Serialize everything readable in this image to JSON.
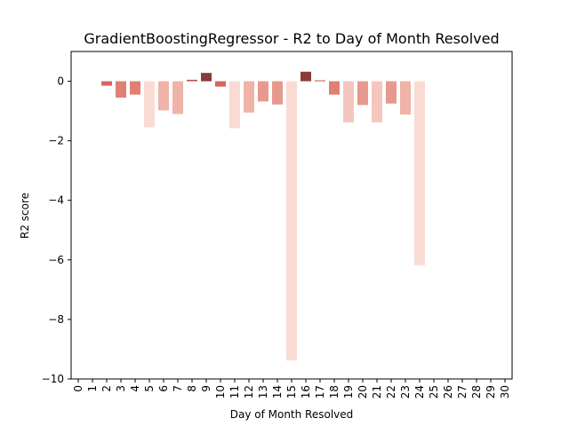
{
  "chart_data": {
    "type": "bar",
    "title": "GradientBoostingRegressor - R2 to Day of Month Resolved",
    "xlabel": "Day of Month Resolved",
    "ylabel": "R2 score",
    "ylim": [
      -10,
      1
    ],
    "yticks": [
      0,
      -2,
      -4,
      -6,
      -8,
      -10
    ],
    "grid": false,
    "categories": [
      "0",
      "1",
      "2",
      "3",
      "4",
      "5",
      "6",
      "7",
      "8",
      "9",
      "10",
      "11",
      "12",
      "13",
      "14",
      "15",
      "16",
      "17",
      "18",
      "19",
      "20",
      "21",
      "22",
      "23",
      "24",
      "25",
      "26",
      "27",
      "28",
      "29",
      "30"
    ],
    "values": [
      null,
      null,
      -0.15,
      -0.55,
      -0.45,
      -1.55,
      -0.98,
      -1.1,
      0.05,
      0.28,
      -0.18,
      -1.58,
      -1.05,
      -0.68,
      -0.78,
      -9.38,
      0.32,
      0.03,
      -0.45,
      -1.38,
      -0.8,
      -1.38,
      -0.75,
      -1.12,
      -6.18,
      null,
      null,
      null,
      null,
      null,
      null
    ],
    "colors": {
      "positive_high": "#8b3a3a",
      "positive_low": "#c0504d",
      "scale": [
        "#d9655c",
        "#e07f74",
        "#e8998e",
        "#efb3a8",
        "#f4c6bd",
        "#f9dbd4"
      ]
    }
  }
}
